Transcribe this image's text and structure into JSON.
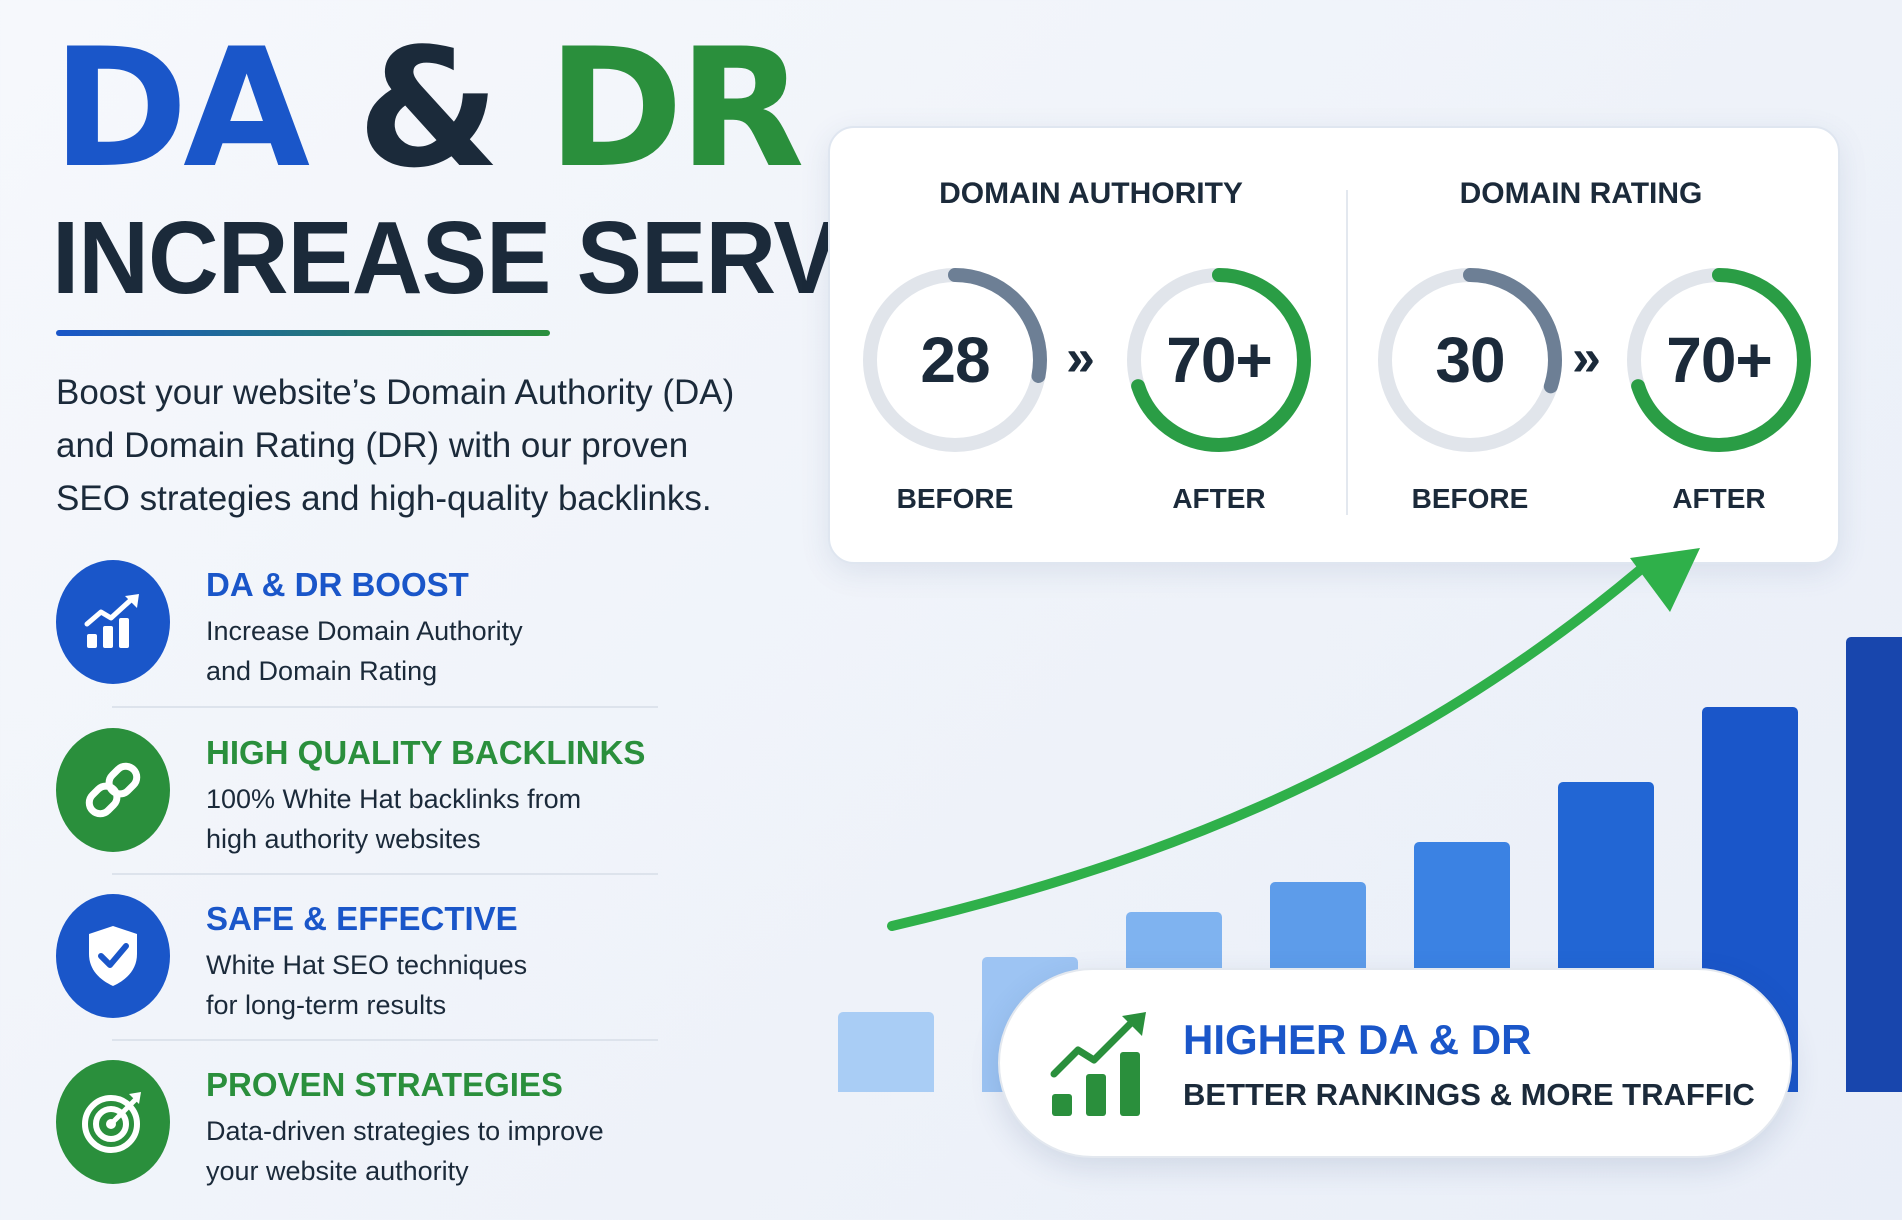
{
  "title": {
    "part1": "DA",
    "amp": " & ",
    "part2": "DR",
    "line2": "INCREASE SERVICE"
  },
  "intro": {
    "line1": "Boost your website’s Domain Authority (DA)",
    "line2": "and Domain Rating (DR) with our proven",
    "line3": "SEO strategies and high-quality backlinks."
  },
  "features": [
    {
      "icon": "growth-chart-icon",
      "color": "#1a56c9",
      "heading": "DA & DR BOOST",
      "line1": "Increase Domain Authority",
      "line2": "and Domain Rating"
    },
    {
      "icon": "link-icon",
      "color": "#2a8f3c",
      "heading": "HIGH QUALITY BACKLINKS",
      "line1": "100% White Hat backlinks from",
      "line2": "high authority websites"
    },
    {
      "icon": "shield-check-icon",
      "color": "#1a56c9",
      "heading": "SAFE & EFFECTIVE",
      "line1": "White Hat SEO techniques",
      "line2": "for long-term results"
    },
    {
      "icon": "target-icon",
      "color": "#2a8f3c",
      "heading": "PROVEN STRATEGIES",
      "line1": "Data-driven strategies to improve",
      "line2": "your website authority"
    }
  ],
  "metrics": [
    {
      "title": "DOMAIN AUTHORITY",
      "before": {
        "value": "28",
        "label": "BEFORE",
        "fill": 0.28
      },
      "after": {
        "value": "70+",
        "label": "AFTER",
        "fill": 0.7
      },
      "separator": "»"
    },
    {
      "title": "DOMAIN RATING",
      "before": {
        "value": "30",
        "label": "BEFORE",
        "fill": 0.3
      },
      "after": {
        "value": "70+",
        "label": "AFTER",
        "fill": 0.7
      },
      "separator": "»"
    }
  ],
  "growth_bars": [
    0.16,
    0.27,
    0.36,
    0.42,
    0.5,
    0.62,
    0.77,
    0.91
  ],
  "banner": {
    "icon": "growth-chart-icon",
    "heading": "HIGHER DA & DR",
    "subheading": "BETTER RANKINGS & MORE TRAFFIC"
  },
  "colors": {
    "brand_blue": "#1a56c9",
    "brand_green": "#2a8f3c",
    "dark": "#1b2a3a",
    "ring_track": "#e1e5eb",
    "ring_before": "#6d7f95"
  }
}
